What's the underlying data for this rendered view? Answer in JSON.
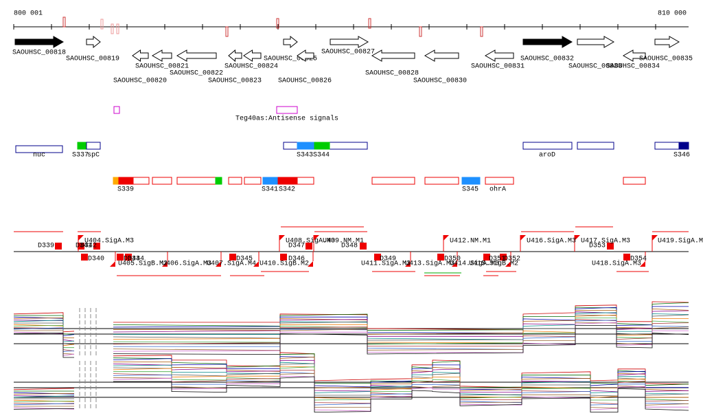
{
  "ruler": {
    "start": "800 001",
    "end": "810 000"
  },
  "genes": [
    "SAOUHSC_00818",
    "SAOUHSC_00819",
    "SAOUHSC_00820",
    "SAOUHSC_00821",
    "SAOUHSC_00822",
    "SAOUHSC_00823",
    "SAOUHSC_00824",
    "SAOUHSC_00825",
    "SAOUHSC_00826",
    "SAOUHSC_00827",
    "SAOUHSC_00828",
    "SAOUHSC_00830",
    "SAOUHSC_00831",
    "SAOUHSC_00832",
    "SAOUHSC_00833",
    "SAOUHSC_00834",
    "SAOUHSC_00835"
  ],
  "antisense": "Teg40as:Antisense signals",
  "features": [
    "nuc",
    "S337",
    "spC",
    "S343",
    "S344",
    "aroD",
    "S346",
    "S339",
    "S341",
    "S342",
    "S345",
    "ohrA"
  ],
  "signals": [
    "D339",
    "D341",
    "D342",
    "U404.SigA.M3",
    "D340",
    "D343",
    "D344",
    "U405.SigB.M2",
    "U406.SigA.M3",
    "U407.SigA.M4",
    "D345",
    "U410.SigB.M2",
    "D346",
    "U408.SigA.M3",
    "U409.NM.M1",
    "D347",
    "D348",
    "D349",
    "U411.SigA.M3",
    "U413.SigA.M3",
    "U414.SigA.M3",
    "U415.SigB.M2",
    "D350",
    "D351",
    "D352",
    "U412.NM.M1",
    "U416.SigA.M3",
    "U417.SigA.M3",
    "D353",
    "U418.SigA.M3",
    "D354",
    "U419.SigA.M3"
  ]
}
